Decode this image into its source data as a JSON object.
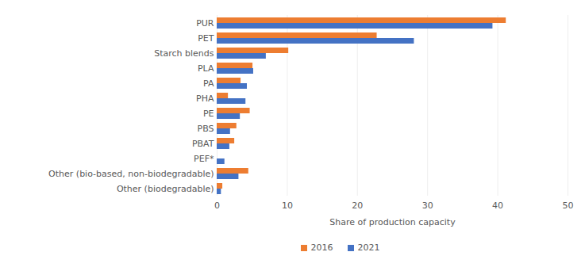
{
  "chart_data": {
    "type": "bar",
    "orientation": "horizontal",
    "x_label": "Share of production capacity",
    "categories": [
      "PUR",
      "PET",
      "Starch blends",
      "PLA",
      "PA",
      "PHA",
      "PE",
      "PBS",
      "PBAT",
      "PEF*",
      "Other (bio-based, non-biodegradable)",
      "Other (biodegradable)"
    ],
    "series": [
      {
        "name": "2016",
        "color": "#ed7d31",
        "values": [
          41.2,
          22.8,
          10.2,
          5.1,
          3.4,
          1.6,
          4.7,
          2.8,
          2.5,
          0,
          4.5,
          0.8
        ]
      },
      {
        "name": "2021",
        "color": "#4472c4",
        "values": [
          39.3,
          28.1,
          7.0,
          5.2,
          4.3,
          4.1,
          3.3,
          1.9,
          1.8,
          1.1,
          3.1,
          0.6
        ]
      }
    ],
    "xlim": [
      0,
      50
    ],
    "xticks": [
      0,
      10,
      20,
      30,
      40,
      50
    ],
    "grid": true,
    "legend": "bottom"
  }
}
